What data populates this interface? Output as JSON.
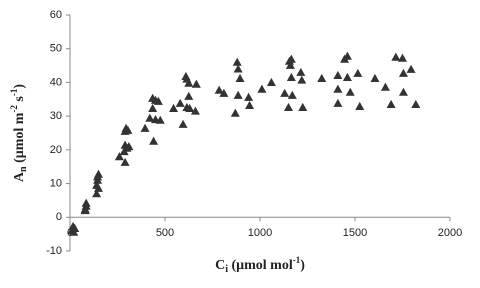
{
  "chart_data": {
    "type": "scatter",
    "xlabel": [
      "C",
      "i",
      " (μmol mol",
      "-1",
      ")"
    ],
    "ylabel": [
      "A",
      "n",
      " (μmol m",
      "-2",
      " s",
      "-1",
      ")"
    ],
    "x": [
      10,
      16,
      20,
      25,
      80,
      85,
      85,
      80,
      140,
      145,
      145,
      140,
      150,
      150,
      260,
      285,
      290,
      290,
      295,
      300,
      305,
      290,
      310,
      395,
      420,
      435,
      440,
      450,
      450,
      465,
      475,
      435,
      545,
      580,
      595,
      610,
      615,
      615,
      625,
      625,
      630,
      660,
      665,
      785,
      810,
      870,
      880,
      885,
      885,
      895,
      940,
      945,
      1010,
      1060,
      1130,
      1150,
      1155,
      1160,
      1165,
      1165,
      1170,
      1215,
      1220,
      1225,
      1325,
      1410,
      1410,
      1410,
      1445,
      1460,
      1460,
      1475,
      1515,
      1525,
      1605,
      1660,
      1690,
      1715,
      1750,
      1755,
      1755,
      1795,
      1820
    ],
    "values": [
      -3.9,
      -2.7,
      -4.4,
      -3.3,
      2,
      3.3,
      4.2,
      2.4,
      9.5,
      12,
      11,
      7,
      8.6,
      12.8,
      18,
      19.5,
      21.4,
      25.5,
      26.4,
      20.5,
      25.8,
      16.3,
      21,
      26.4,
      29.4,
      35.3,
      22.6,
      34.7,
      29,
      34.4,
      28.8,
      32.3,
      32.3,
      33.8,
      27.6,
      41.8,
      41,
      32.6,
      35.9,
      39.8,
      32.3,
      31.5,
      39.5,
      37.7,
      36.8,
      30.9,
      46,
      44,
      36.2,
      41.2,
      35.6,
      33.2,
      38,
      40,
      36.8,
      32.6,
      46.3,
      45.1,
      46.9,
      41.5,
      36.2,
      43,
      40.7,
      32.6,
      41.2,
      42.1,
      38,
      33.8,
      46.9,
      47.8,
      41.5,
      37.1,
      42.7,
      32.9,
      41.2,
      38.6,
      33.5,
      47.5,
      47.2,
      42.7,
      37.1,
      43.9,
      33.5
    ],
    "color": "#333333",
    "xlim": [
      0,
      2000
    ],
    "xticks": [
      0,
      500,
      1000,
      1500,
      2000
    ],
    "ylim": [
      -10,
      60
    ],
    "yticks": [
      -10,
      0,
      10,
      20,
      30,
      40,
      50,
      60
    ],
    "grid": false
  }
}
